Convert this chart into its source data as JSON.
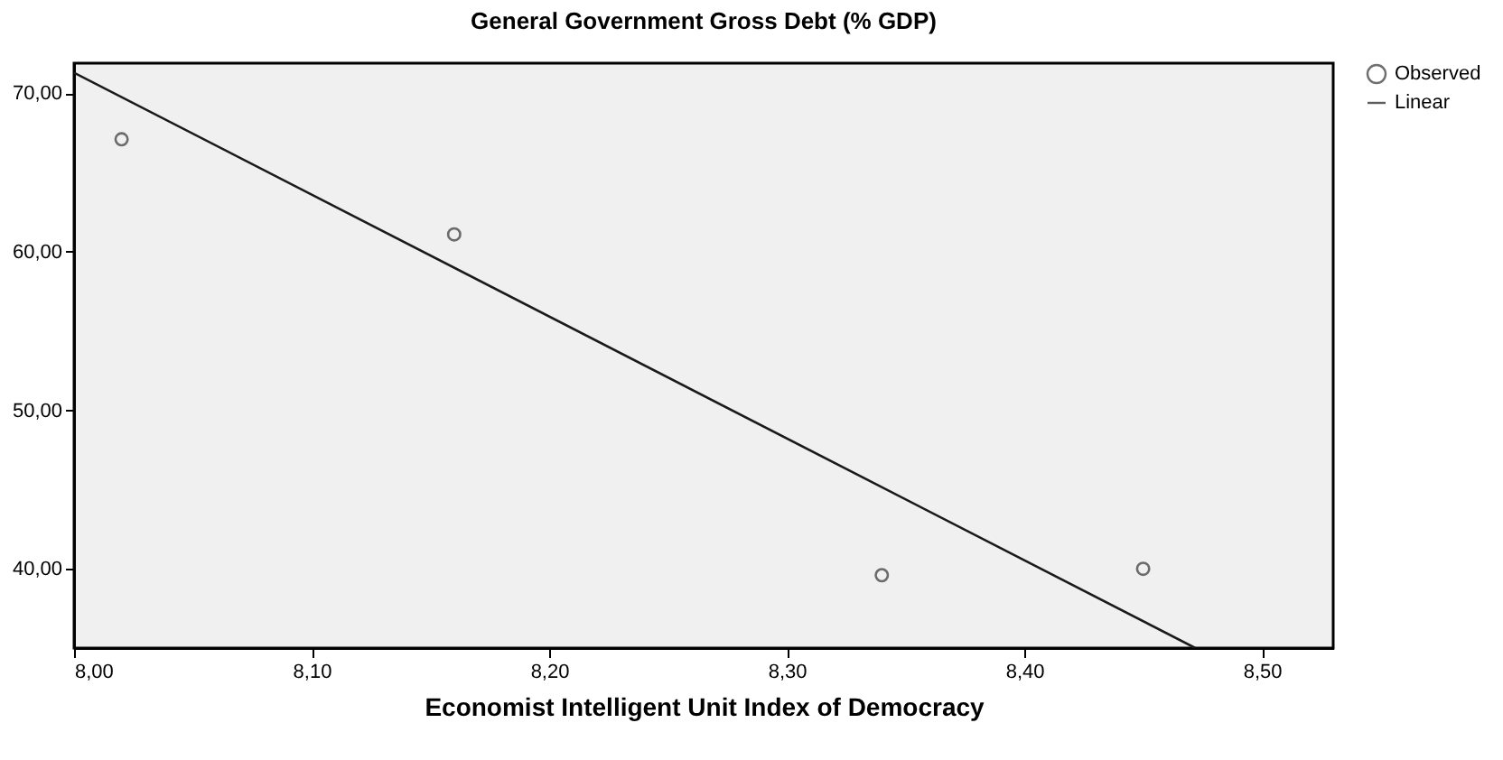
{
  "chart_data": {
    "type": "scatter",
    "title": "General Government Gross Debt (% GDP)",
    "xlabel": "Economist Intelligent Unit Index of Democracy",
    "xlim": [
      8.0,
      8.53
    ],
    "ylim": [
      35.0,
      71.9
    ],
    "xticks": [
      {
        "value": 8.0,
        "label": "8,00"
      },
      {
        "value": 8.1,
        "label": "8,10"
      },
      {
        "value": 8.2,
        "label": "8,20"
      },
      {
        "value": 8.3,
        "label": "8,30"
      },
      {
        "value": 8.4,
        "label": "8,40"
      },
      {
        "value": 8.5,
        "label": "8,50"
      }
    ],
    "yticks": [
      {
        "value": 40,
        "label": "40,00"
      },
      {
        "value": 50,
        "label": "50,00"
      },
      {
        "value": 60,
        "label": "60,00"
      },
      {
        "value": 70,
        "label": "70,00"
      }
    ],
    "grid": false,
    "legend": "top right",
    "series": [
      {
        "name": "Observed",
        "marker": "circle",
        "color": "#333333",
        "x": [
          8.02,
          8.16,
          8.34,
          8.45
        ],
        "values": [
          67.1,
          61.1,
          39.6,
          40.0
        ]
      },
      {
        "name": "Linear",
        "type": "line",
        "color": "#1a1a1a",
        "line_style": "solid",
        "x": [
          8.0,
          8.472
        ],
        "values": [
          71.3,
          35.0
        ]
      }
    ]
  }
}
